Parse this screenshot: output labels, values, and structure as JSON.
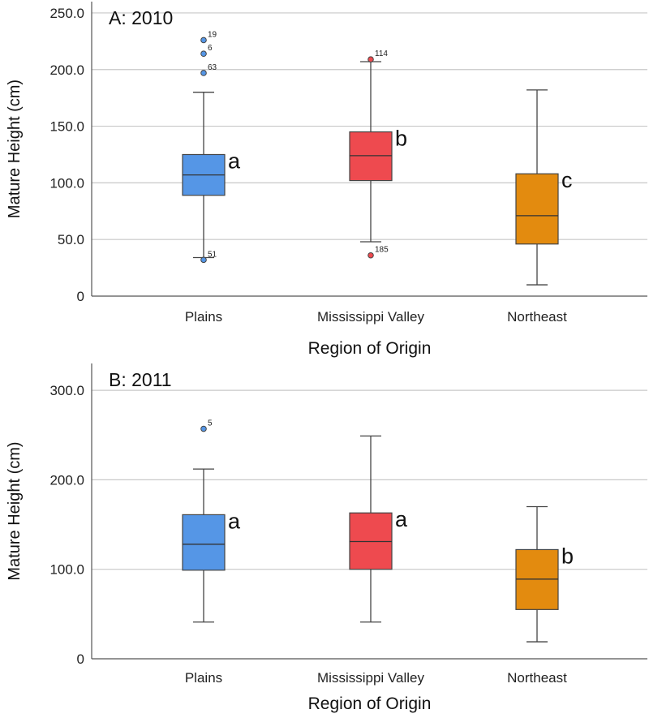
{
  "chart_data": [
    {
      "type": "box",
      "panel_label": "A: 2010",
      "xlabel": "Region of Origin",
      "ylabel": "Mature Height (cm)",
      "ylim": [
        0,
        260
      ],
      "yticks": [
        0,
        50,
        100,
        150,
        200,
        250
      ],
      "ytick_labels": [
        "0",
        "50.0",
        "100.0",
        "150.0",
        "200.0",
        "250.0"
      ],
      "categories": [
        "Plains",
        "Mississippi Valley",
        "Northeast"
      ],
      "boxes": [
        {
          "name": "Plains",
          "color": "#5596e6",
          "whisker_low": 34,
          "q1": 89,
          "median": 107,
          "q3": 125,
          "whisker_high": 180,
          "letter": "a",
          "outliers": [
            {
              "value": 226,
              "label": "19"
            },
            {
              "value": 214,
              "label": "6"
            },
            {
              "value": 197,
              "label": "63"
            },
            {
              "value": 32,
              "label": "51"
            }
          ]
        },
        {
          "name": "Mississippi Valley",
          "color": "#ee4a4f",
          "whisker_low": 48,
          "q1": 102,
          "median": 124,
          "q3": 145,
          "whisker_high": 207,
          "letter": "b",
          "outliers": [
            {
              "value": 209,
              "label": "114"
            },
            {
              "value": 36,
              "label": "185"
            }
          ]
        },
        {
          "name": "Northeast",
          "color": "#e38b0f",
          "whisker_low": 10,
          "q1": 46,
          "median": 71,
          "q3": 108,
          "whisker_high": 182,
          "letter": "c",
          "outliers": []
        }
      ]
    },
    {
      "type": "box",
      "panel_label": "B: 2011",
      "xlabel": "Region of Origin",
      "ylabel": "Mature Height (cm)",
      "ylim": [
        0,
        330
      ],
      "yticks": [
        0,
        100,
        200,
        300
      ],
      "ytick_labels": [
        "0",
        "100.0",
        "200.0",
        "300.0"
      ],
      "categories": [
        "Plains",
        "Mississippi Valley",
        "Northeast"
      ],
      "boxes": [
        {
          "name": "Plains",
          "color": "#5596e6",
          "whisker_low": 41,
          "q1": 99,
          "median": 128,
          "q3": 161,
          "whisker_high": 212,
          "letter": "a",
          "outliers": [
            {
              "value": 257,
              "label": "5"
            }
          ]
        },
        {
          "name": "Mississippi Valley",
          "color": "#ee4a4f",
          "whisker_low": 41,
          "q1": 100,
          "median": 131,
          "q3": 163,
          "whisker_high": 249,
          "letter": "a",
          "outliers": []
        },
        {
          "name": "Northeast",
          "color": "#e38b0f",
          "whisker_low": 19,
          "q1": 55,
          "median": 89,
          "q3": 122,
          "whisker_high": 170,
          "letter": "b",
          "outliers": []
        }
      ]
    }
  ]
}
